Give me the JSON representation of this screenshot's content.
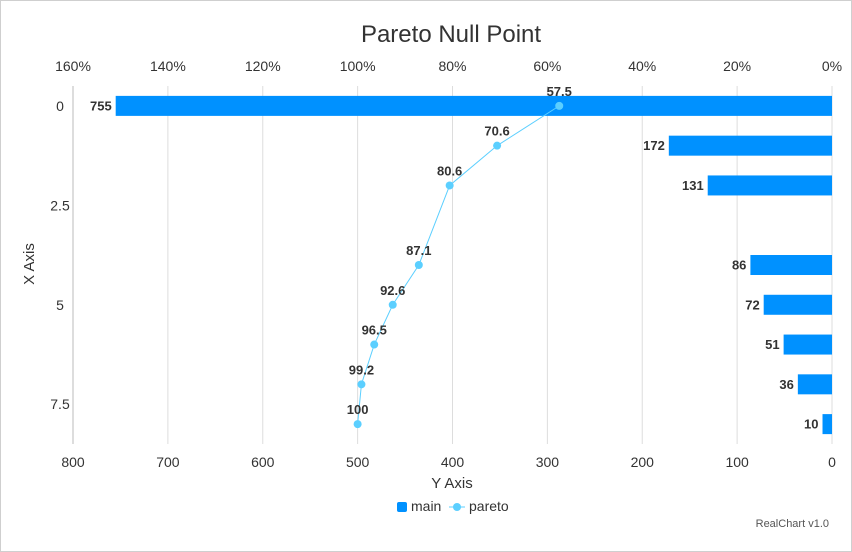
{
  "chart_data": {
    "type": "bar",
    "title": "Pareto Null Point",
    "xlabel": "X Axis",
    "ylabel": "Y Axis",
    "orientation": "horizontal",
    "y_reversed": true,
    "x_axis_ticks": [
      "0",
      "2.5",
      "5",
      "7.5"
    ],
    "y_axis_ticks": [
      "800",
      "700",
      "600",
      "500",
      "400",
      "300",
      "200",
      "100",
      "0"
    ],
    "pareto_axis_ticks": [
      "160%",
      "140%",
      "120%",
      "100%",
      "80%",
      "60%",
      "40%",
      "20%",
      "0%"
    ],
    "x_range": [
      -0.5,
      8.5
    ],
    "y_range": [
      0,
      800
    ],
    "pareto_range": [
      0,
      160
    ],
    "grid": true,
    "legend_position": "bottom",
    "series": [
      {
        "name": "main",
        "type": "bar",
        "color": "#0091ff",
        "points": [
          {
            "x": 0,
            "y": 755
          },
          {
            "x": 1,
            "y": 172
          },
          {
            "x": 2,
            "y": 131
          },
          {
            "x": 4,
            "y": 86
          },
          {
            "x": 5,
            "y": 72
          },
          {
            "x": 6,
            "y": 51
          },
          {
            "x": 7,
            "y": 36
          },
          {
            "x": 8,
            "y": 10
          }
        ],
        "labels": [
          "755",
          "172",
          "131",
          "86",
          "72",
          "51",
          "36",
          "10"
        ]
      },
      {
        "name": "pareto",
        "type": "line",
        "color": "#5bcfff",
        "points": [
          {
            "x": 0,
            "y": 57.5
          },
          {
            "x": 1,
            "y": 70.6
          },
          {
            "x": 2,
            "y": 80.6
          },
          {
            "x": 4,
            "y": 87.1
          },
          {
            "x": 5,
            "y": 92.6
          },
          {
            "x": 6,
            "y": 96.5
          },
          {
            "x": 7,
            "y": 99.2
          },
          {
            "x": 8,
            "y": 100
          }
        ],
        "labels": [
          "57.5",
          "70.6",
          "80.6",
          "87.1",
          "92.6",
          "96.5",
          "99.2",
          "100"
        ]
      }
    ],
    "credit": "RealChart v1.0"
  }
}
